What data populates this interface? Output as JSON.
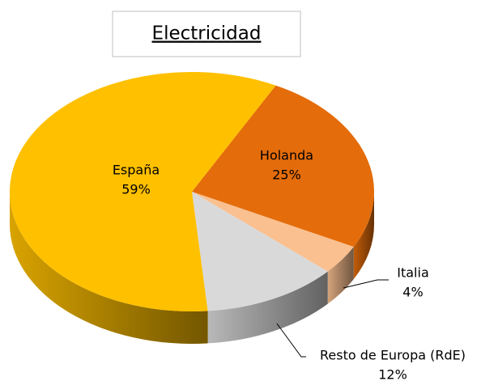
{
  "chart_data": {
    "type": "pie",
    "title": "Electricidad",
    "categories": [
      "España",
      "Holanda",
      "Italia",
      "Resto de Europa (RdE)"
    ],
    "values": [
      59,
      25,
      4,
      12
    ],
    "value_labels": [
      "59%",
      "25%",
      "4%",
      "12%"
    ],
    "colors": [
      "#FFC000",
      "#E46C0A",
      "#FAC090",
      "#D9D9D9"
    ]
  }
}
